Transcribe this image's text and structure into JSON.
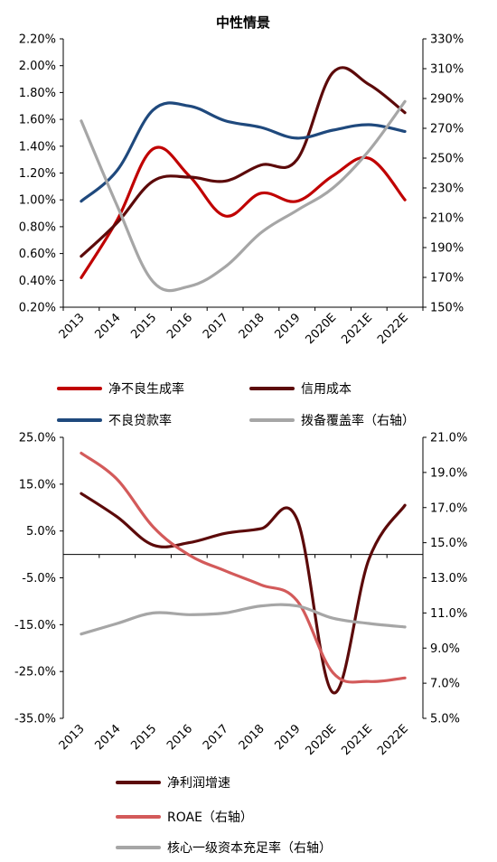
{
  "chart_data": [
    {
      "type": "line",
      "title": "中性情景",
      "categories": [
        "2013",
        "2014",
        "2015",
        "2016",
        "2017",
        "2018",
        "2019",
        "2020E",
        "2021E",
        "2022E"
      ],
      "y_left": {
        "ticks": [
          "0.20%",
          "0.40%",
          "0.60%",
          "0.80%",
          "1.00%",
          "1.20%",
          "1.40%",
          "1.60%",
          "1.80%",
          "2.00%",
          "2.20%"
        ],
        "range": [
          0.2,
          2.2
        ]
      },
      "y_right": {
        "ticks": [
          "150%",
          "170%",
          "190%",
          "210%",
          "230%",
          "250%",
          "270%",
          "290%",
          "310%",
          "330%"
        ],
        "range": [
          150,
          330
        ]
      },
      "grid": false,
      "legend_position": "bottom",
      "series": [
        {
          "name": "净不良生成率",
          "axis": "left",
          "color": "#c00000",
          "values": [
            0.42,
            0.85,
            1.38,
            1.18,
            0.88,
            1.05,
            0.99,
            1.18,
            1.31,
            1.0
          ]
        },
        {
          "name": "信用成本",
          "axis": "left",
          "color": "#5c0a0a",
          "values": [
            0.58,
            0.83,
            1.14,
            1.17,
            1.14,
            1.26,
            1.3,
            1.95,
            1.86,
            1.65
          ]
        },
        {
          "name": "不良贷款率",
          "axis": "left",
          "color": "#1f497d",
          "values": [
            0.99,
            1.22,
            1.67,
            1.7,
            1.59,
            1.54,
            1.46,
            1.52,
            1.56,
            1.51
          ]
        },
        {
          "name": "拨备覆盖率（右轴）",
          "axis": "right",
          "color": "#a6a6a6",
          "values": [
            275,
            218,
            167,
            164,
            177,
            200,
            215,
            230,
            255,
            288
          ]
        }
      ]
    },
    {
      "type": "line",
      "categories": [
        "2013",
        "2014",
        "2015",
        "2016",
        "2017",
        "2018",
        "2019",
        "2020E",
        "2021E",
        "2022E"
      ],
      "y_left": {
        "ticks": [
          "25.0%",
          "15.0%",
          "5.0%",
          "-5.0%",
          "-15.0%",
          "-25.0%",
          "-35.0%"
        ],
        "range": [
          -35,
          25
        ]
      },
      "y_right": {
        "ticks": [
          "21.0%",
          "19.0%",
          "17.0%",
          "15.0%",
          "13.0%",
          "11.0%",
          "9.0%",
          "7.0%",
          "5.0%"
        ],
        "range": [
          5,
          21
        ]
      },
      "grid": false,
      "legend_position": "bottom",
      "series": [
        {
          "name": "净利润增速",
          "axis": "left",
          "color": "#5c0a0a",
          "values": [
            13.0,
            8.0,
            2.0,
            2.5,
            4.5,
            5.5,
            7.5,
            -29.5,
            -1.0,
            10.5
          ]
        },
        {
          "name": "ROAE（右轴）",
          "axis": "right",
          "color": "#d35a5a",
          "values": [
            20.1,
            18.6,
            15.9,
            14.3,
            13.4,
            12.6,
            11.7,
            7.6,
            7.1,
            7.3
          ]
        },
        {
          "name": "核心一级资本充足率（右轴）",
          "axis": "right",
          "color": "#a6a6a6",
          "values": [
            9.8,
            10.4,
            11.0,
            10.9,
            11.0,
            11.4,
            11.4,
            10.7,
            10.4,
            10.2
          ]
        }
      ]
    }
  ]
}
